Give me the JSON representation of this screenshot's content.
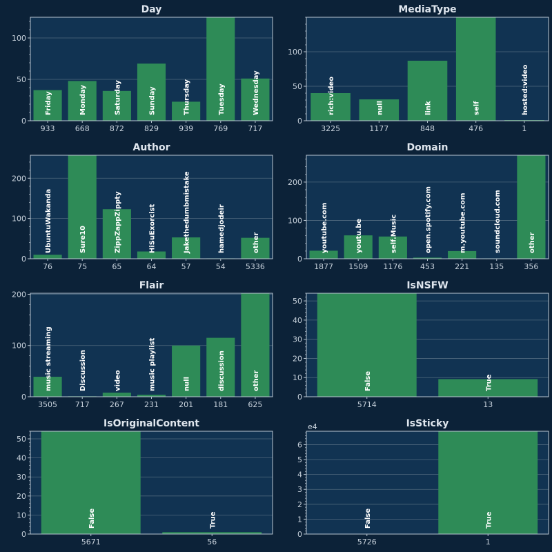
{
  "colors": {
    "figure_bg": "#0c2238",
    "axes_bg": "#113352",
    "bar": "#2e8b57",
    "grid": "#6b7f90",
    "spine": "#b9c6d2",
    "text": "#dfe6ee"
  },
  "chart_data": [
    {
      "type": "bar",
      "title": "Day",
      "categories": [
        "Friday",
        "Monday",
        "Saturday",
        "Sunday",
        "Thursday",
        "Tuesday",
        "Wednesday"
      ],
      "values": [
        37,
        48,
        36,
        69,
        23,
        125,
        51
      ],
      "bottom_labels": [
        "933",
        "668",
        "872",
        "829",
        "939",
        "769",
        "717"
      ],
      "yticks": [
        0,
        50,
        100
      ],
      "ylim": [
        0,
        125
      ],
      "grid": true
    },
    {
      "type": "bar",
      "title": "MediaType",
      "categories": [
        "rich:video",
        "null",
        "link",
        "self",
        "hosted:video"
      ],
      "values": [
        40,
        31,
        87,
        150,
        1
      ],
      "bottom_labels": [
        "3225",
        "1177",
        "848",
        "476",
        "1"
      ],
      "yticks": [
        0,
        50,
        100
      ],
      "ylim": [
        0,
        150
      ],
      "grid": true
    },
    {
      "type": "bar",
      "title": "Author",
      "categories": [
        "UbuntuWakanda",
        "Sure10",
        "ZippZappZippty",
        "HiSuExorcist",
        "Jakethedumbmistake",
        "hamedjodeir",
        "other"
      ],
      "values": [
        10,
        257,
        123,
        18,
        53,
        1,
        52
      ],
      "bottom_labels": [
        "76",
        "75",
        "65",
        "64",
        "57",
        "54",
        "5336"
      ],
      "yticks": [
        0,
        100,
        200
      ],
      "ylim": [
        0,
        257
      ],
      "grid": true
    },
    {
      "type": "bar",
      "title": "Domain",
      "categories": [
        "youtube.com",
        "youtu.be",
        "self.Music",
        "open.spotify.com",
        "m.youtube.com",
        "soundcloud.com",
        "other"
      ],
      "values": [
        21,
        61,
        58,
        3,
        20,
        1,
        270
      ],
      "bottom_labels": [
        "1877",
        "1509",
        "1176",
        "453",
        "221",
        "135",
        "356"
      ],
      "yticks": [
        0,
        100,
        200
      ],
      "ylim": [
        0,
        270
      ],
      "grid": true
    },
    {
      "type": "bar",
      "title": "Flair",
      "categories": [
        "music streaming",
        "Discussion",
        "video",
        "music playlist",
        "null",
        "discussion",
        "other"
      ],
      "values": [
        39,
        1,
        8,
        4,
        100,
        115,
        202
      ],
      "bottom_labels": [
        "3505",
        "717",
        "267",
        "231",
        "201",
        "181",
        "625"
      ],
      "yticks": [
        0,
        100,
        200
      ],
      "ylim": [
        0,
        202
      ],
      "grid": true
    },
    {
      "type": "bar",
      "title": "IsNSFW",
      "categories": [
        "False",
        "True"
      ],
      "values": [
        54,
        9.2
      ],
      "bottom_labels": [
        "5714",
        "13"
      ],
      "yticks": [
        0,
        10,
        20,
        30,
        40,
        50
      ],
      "ylim": [
        0,
        54
      ],
      "grid": true
    },
    {
      "type": "bar",
      "title": "IsOriginalContent",
      "categories": [
        "False",
        "True"
      ],
      "values": [
        54,
        1
      ],
      "bottom_labels": [
        "5671",
        "56"
      ],
      "yticks": [
        0,
        10,
        20,
        30,
        40,
        50
      ],
      "ylim": [
        0,
        54
      ],
      "grid": true
    },
    {
      "type": "bar",
      "title": "IsSticky",
      "multiplier_label": "e4",
      "categories": [
        "False",
        "True"
      ],
      "values": [
        0,
        6.9
      ],
      "bottom_labels": [
        "5726",
        "1"
      ],
      "yticks": [
        0,
        1,
        2,
        3,
        4,
        5,
        6
      ],
      "ylim": [
        0,
        6.9
      ],
      "grid": true
    }
  ]
}
